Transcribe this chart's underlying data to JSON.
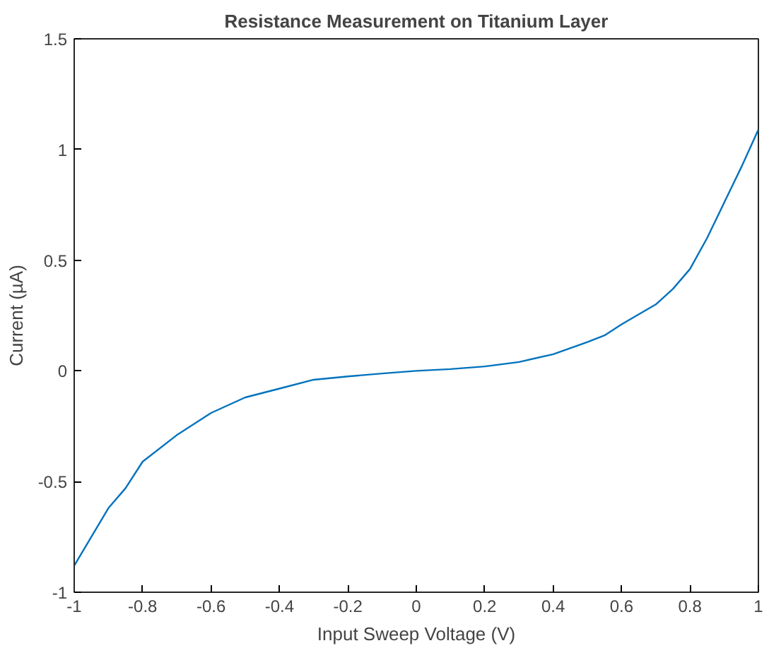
{
  "chart_data": {
    "type": "line",
    "title": "Resistance Measurement on Titanium Layer",
    "xlabel": "Input Sweep Voltage (V)",
    "ylabel": "Current (µA)",
    "x": [
      -1,
      -0.9,
      -0.85,
      -0.8,
      -0.7,
      -0.6,
      -0.5,
      -0.4,
      -0.3,
      -0.2,
      -0.1,
      0,
      0.1,
      0.2,
      0.3,
      0.4,
      0.5,
      0.55,
      0.6,
      0.7,
      0.75,
      0.8,
      0.85,
      0.9,
      0.95,
      1
    ],
    "series": [
      {
        "color": "#0072bd",
        "values": [
          -0.88,
          -0.62,
          -0.53,
          -0.41,
          -0.29,
          -0.19,
          -0.12,
          -0.08,
          -0.04,
          -0.025,
          -0.012,
          0,
          0.008,
          0.02,
          0.04,
          0.075,
          0.13,
          0.16,
          0.21,
          0.3,
          0.37,
          0.46,
          0.6,
          0.76,
          0.92,
          1.09
        ]
      }
    ],
    "xlim": [
      -1,
      1
    ],
    "ylim": [
      -1,
      1.5
    ],
    "xticks": [
      -1,
      -0.8,
      -0.6,
      -0.4,
      -0.2,
      0,
      0.2,
      0.4,
      0.6,
      0.8,
      1
    ],
    "yticks": [
      -1,
      -0.5,
      0,
      0.5,
      1,
      1.5
    ],
    "grid": false,
    "marker": "none",
    "line_style": "solid"
  }
}
